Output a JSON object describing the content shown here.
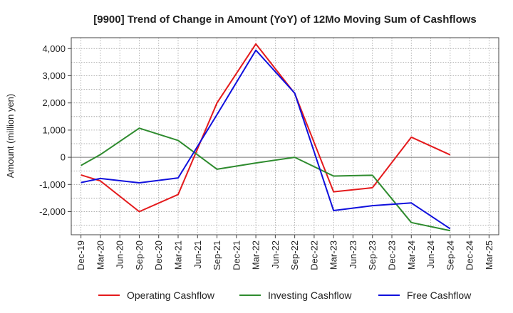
{
  "chart_data": {
    "type": "line",
    "title": "[9900]  Trend of Change in Amount (YoY) of 12Mo Moving Sum of Cashflows",
    "xlabel": "",
    "ylabel": "Amount (million yen)",
    "categories": [
      "Dec-19",
      "Mar-20",
      "Jun-20",
      "Sep-20",
      "Dec-20",
      "Mar-21",
      "Jun-21",
      "Sep-21",
      "Dec-21",
      "Mar-22",
      "Jun-22",
      "Sep-22",
      "Dec-22",
      "Mar-23",
      "Jun-23",
      "Sep-23",
      "Dec-23",
      "Mar-24",
      "Jun-24",
      "Sep-24",
      "Dec-24",
      "Mar-25"
    ],
    "ylim": [
      -2850,
      4400
    ],
    "yticks": [
      -2000,
      -1000,
      0,
      1000,
      2000,
      3000,
      4000
    ],
    "ytick_labels": [
      "-2,000",
      "-1,000",
      "0",
      "1,000",
      "2,000",
      "3,000",
      "4,000"
    ],
    "grid": true,
    "legend_position": "bottom",
    "series": [
      {
        "name": "Operating Cashflow",
        "color": "#e41a1c",
        "values": [
          -650,
          -870,
          null,
          -2000,
          null,
          -1370,
          null,
          2000,
          null,
          4170,
          null,
          2350,
          null,
          -1270,
          null,
          -1120,
          null,
          740,
          null,
          90,
          null,
          null
        ]
      },
      {
        "name": "Investing Cashflow",
        "color": "#2e8b2e",
        "values": [
          -300,
          100,
          null,
          1070,
          null,
          620,
          null,
          -440,
          null,
          -210,
          null,
          0,
          null,
          -690,
          null,
          -660,
          null,
          -2400,
          null,
          -2700,
          null,
          null
        ]
      },
      {
        "name": "Free Cashflow",
        "color": "#1010dd",
        "values": [
          -930,
          -780,
          null,
          -940,
          null,
          -760,
          null,
          1570,
          null,
          3940,
          null,
          2360,
          null,
          -1960,
          null,
          -1780,
          null,
          -1680,
          null,
          -2630,
          null,
          null
        ]
      }
    ]
  }
}
